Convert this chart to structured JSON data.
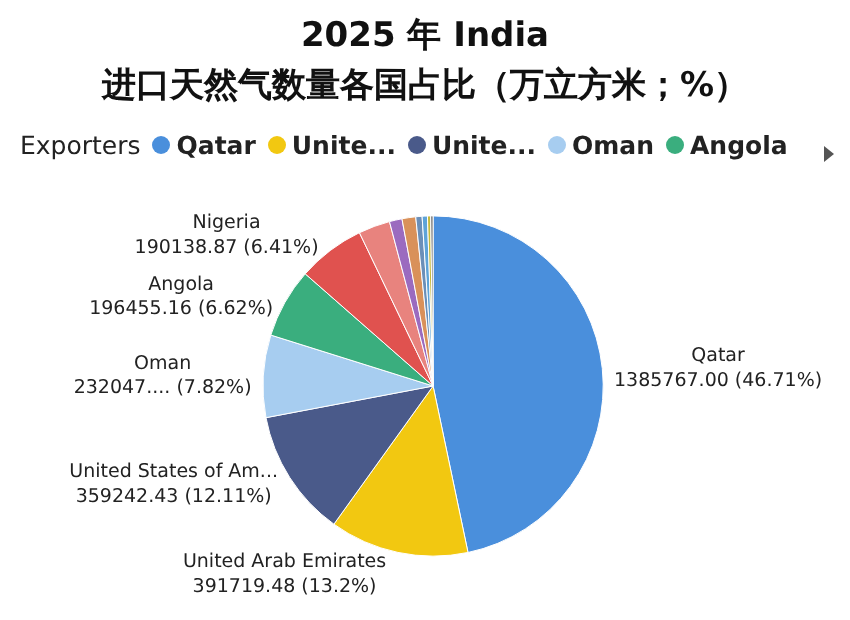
{
  "chart_data": {
    "type": "pie",
    "title": "2025 年 India\n进口天然气数量各国占比（万立方米；%）",
    "legend_title": "Exporters",
    "legend": "top",
    "categories": [
      "Qatar",
      "Unite...",
      "Unite...",
      "Oman",
      "Angola",
      null,
      null,
      null,
      null,
      null,
      null,
      null,
      null
    ],
    "values": [
      46.71,
      13.2,
      12.11,
      7.82,
      6.62,
      6.41,
      3.0,
      1.2,
      1.3,
      0.6,
      0.5,
      0.3,
      0.23
    ],
    "value_labels": [
      "Qatar\n1385767.00 (46.71%)",
      "United Arab Emirates\n391719.48 (13.2%)",
      "United States of Am...\n359242.43 (12.11%)",
      "Oman\n232047.... (7.82%)",
      "Angola\n196455.16 (6.62%)",
      "Nigeria\n190138.87 (6.41%)",
      null,
      null,
      null,
      null,
      null,
      null,
      null
    ],
    "colors": [
      "#4a8fdc",
      "#f2c811",
      "#4a5a8a",
      "#a7cdf0",
      "#3aae7e",
      "#e0524f",
      "#e8837e",
      "#9b6bbf",
      "#d9915a",
      "#6b8fb8",
      "#5ea3d8",
      "#c6b93a",
      "#777777"
    ]
  }
}
